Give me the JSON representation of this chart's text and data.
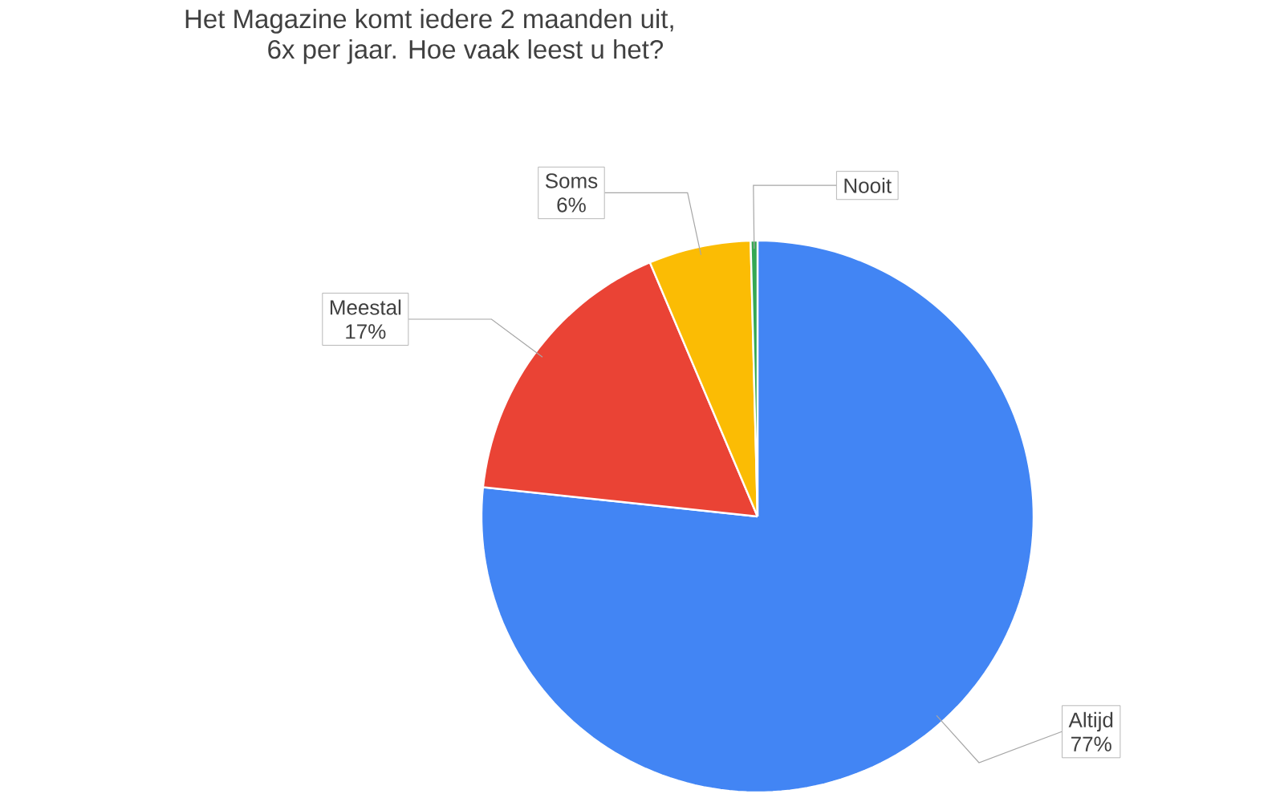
{
  "chart_data": {
    "type": "pie",
    "title": "Het Magazine komt iedere 2 maanden uit,\n6x per jaar. Hoe vaak leest u het?",
    "categories": [
      "Altijd",
      "Meestal",
      "Soms",
      "Nooit"
    ],
    "values": [
      77,
      17,
      6,
      0.4
    ],
    "value_labels": [
      "77%",
      "17%",
      "6%",
      null
    ],
    "colors": [
      "#4285f4",
      "#ea4335",
      "#fbbc04",
      "#34a853"
    ]
  }
}
